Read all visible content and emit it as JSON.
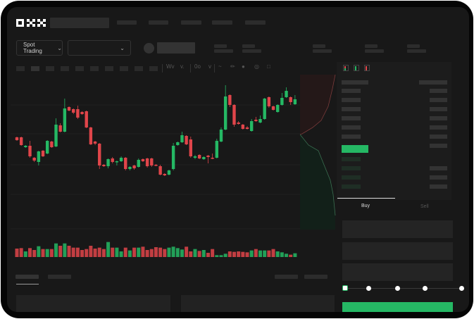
{
  "header": {
    "logo": "OKX",
    "trading_mode": "Spot Trading",
    "pair_selector": ""
  },
  "trade_form": {
    "tabs": [
      {
        "label": "Buy",
        "active": true
      },
      {
        "label": "Sell",
        "active": false
      }
    ],
    "slider_percent": 0
  },
  "colors": {
    "up": "#25b864",
    "down": "#e0454a",
    "background": "#181818",
    "frame": "#050505"
  },
  "toolbar_icons": [
    "indicator-icon",
    "chevron-down-icon",
    "candle-type-icon",
    "chevron-down-icon",
    "line-tool-icon",
    "ruler-icon",
    "camera-icon",
    "target-icon",
    "fullscreen-icon"
  ],
  "orderbook_icons": [
    "orderbook-both-icon",
    "orderbook-bids-icon",
    "orderbook-asks-icon"
  ],
  "chart_data": {
    "type": "candlestick",
    "grid": true,
    "candles": [
      [
        167,
        163,
        168,
        162
      ],
      [
        167,
        156,
        168,
        155
      ],
      [
        153,
        155,
        156,
        152
      ],
      [
        155,
        140,
        162,
        138
      ],
      [
        138,
        134,
        139,
        132
      ],
      [
        132,
        147,
        148,
        127
      ],
      [
        148,
        140,
        149,
        139
      ],
      [
        144,
        162,
        163,
        143
      ],
      [
        161,
        153,
        162,
        152
      ],
      [
        154,
        185,
        194,
        153
      ],
      [
        184,
        175,
        187,
        174
      ],
      [
        175,
        208,
        222,
        174
      ],
      [
        210,
        205,
        211,
        204
      ],
      [
        207,
        202,
        208,
        200
      ],
      [
        207,
        195,
        212,
        193
      ],
      [
        203,
        200,
        204,
        199
      ],
      [
        204,
        181,
        205,
        180
      ],
      [
        181,
        157,
        182,
        156
      ],
      [
        161,
        158,
        162,
        156
      ],
      [
        158,
        127,
        159,
        122
      ],
      [
        128,
        126,
        129,
        125
      ],
      [
        126,
        136,
        137,
        123
      ],
      [
        137,
        132,
        139,
        130
      ],
      [
        132,
        133,
        134,
        127
      ],
      [
        133,
        138,
        140,
        132
      ],
      [
        138,
        122,
        139,
        120
      ],
      [
        122,
        125,
        126,
        120
      ],
      [
        127,
        123,
        128,
        121
      ],
      [
        125,
        135,
        137,
        124
      ],
      [
        136,
        133,
        137,
        132
      ],
      [
        137,
        126,
        138,
        124
      ],
      [
        137,
        127,
        138,
        125
      ],
      [
        128,
        127,
        129,
        126
      ],
      [
        126,
        114,
        128,
        113
      ],
      [
        115,
        113,
        116,
        112
      ],
      [
        114,
        120,
        121,
        113
      ],
      [
        122,
        155,
        159,
        120
      ],
      [
        156,
        160,
        161,
        155
      ],
      [
        160,
        170,
        175,
        159
      ],
      [
        169,
        157,
        170,
        156
      ],
      [
        164,
        140,
        168,
        138
      ],
      [
        138,
        140,
        142,
        136
      ],
      [
        142,
        137,
        143,
        136
      ],
      [
        136,
        139,
        140,
        135
      ],
      [
        141,
        139,
        142,
        130
      ],
      [
        138,
        137,
        144,
        136
      ],
      [
        138,
        162,
        165,
        137
      ],
      [
        161,
        178,
        181,
        160
      ],
      [
        178,
        225,
        241,
        177
      ],
      [
        227,
        213,
        228,
        210
      ],
      [
        213,
        185,
        214,
        182
      ],
      [
        188,
        186,
        190,
        185
      ],
      [
        185,
        179,
        186,
        178
      ],
      [
        181,
        179,
        183,
        178
      ],
      [
        176,
        190,
        193,
        175
      ],
      [
        192,
        190,
        196,
        189
      ],
      [
        188,
        193,
        198,
        187
      ],
      [
        193,
        222,
        223,
        192
      ],
      [
        224,
        211,
        225,
        209
      ],
      [
        211,
        206,
        212,
        205
      ],
      [
        203,
        213,
        214,
        202
      ],
      [
        213,
        223,
        230,
        212
      ],
      [
        224,
        233,
        238,
        223
      ],
      [
        224,
        217,
        225,
        213
      ],
      [
        214,
        221,
        227,
        213
      ]
    ],
    "candle_fields": [
      "open",
      "close",
      "high",
      "low"
    ],
    "volume": [
      36,
      38,
      24,
      38,
      30,
      46,
      34,
      34,
      34,
      58,
      48,
      58,
      48,
      40,
      40,
      30,
      34,
      48,
      36,
      40,
      34,
      64,
      40,
      40,
      24,
      40,
      28,
      40,
      40,
      44,
      30,
      34,
      42,
      40,
      34,
      40,
      44,
      38,
      32,
      44,
      24,
      34,
      26,
      30,
      18,
      34,
      8,
      8,
      14,
      24,
      22,
      24,
      22,
      20,
      28,
      34,
      28,
      28,
      28,
      34,
      24,
      20,
      14,
      10,
      16
    ]
  }
}
